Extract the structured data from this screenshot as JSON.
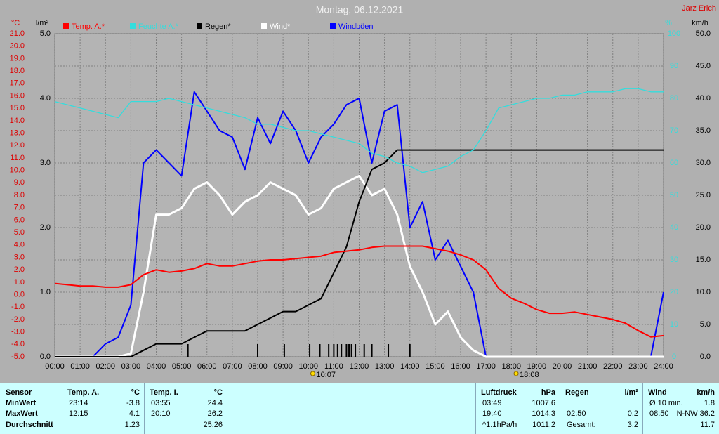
{
  "chart_data": {
    "type": "line",
    "title": "Montag, 06.12.2021",
    "author": "Jarz Erich",
    "axis_labels": {
      "y": "°C",
      "y2": "l/m²",
      "y3": "%",
      "y4": "km/h"
    },
    "x": [
      0,
      0.5,
      1,
      1.5,
      2,
      2.5,
      3,
      3.5,
      4,
      4.5,
      5,
      5.5,
      6,
      6.5,
      7,
      7.5,
      8,
      8.5,
      9,
      9.5,
      10,
      10.5,
      11,
      11.5,
      12,
      12.5,
      13,
      13.5,
      14,
      14.5,
      15,
      15.5,
      16,
      16.5,
      17,
      17.5,
      18,
      18.5,
      19,
      19.5,
      20,
      20.5,
      21,
      21.5,
      22,
      22.5,
      23,
      23.5,
      24
    ],
    "xlim": [
      0,
      24
    ],
    "xticks": [
      {
        "value": 0,
        "label": "00:00"
      },
      {
        "value": 1,
        "label": "01:00"
      },
      {
        "value": 2,
        "label": "02:00"
      },
      {
        "value": 3,
        "label": "03:00"
      },
      {
        "value": 4,
        "label": "04:00"
      },
      {
        "value": 5,
        "label": "05:00"
      },
      {
        "value": 6,
        "label": "06:00"
      },
      {
        "value": 7,
        "label": "07:00"
      },
      {
        "value": 8,
        "label": "08:00"
      },
      {
        "value": 9,
        "label": "09:00"
      },
      {
        "value": 10,
        "label": "10:00"
      },
      {
        "value": 11,
        "label": "11:00"
      },
      {
        "value": 12,
        "label": "12:00"
      },
      {
        "value": 13,
        "label": "13:00"
      },
      {
        "value": 14,
        "label": "14:00"
      },
      {
        "value": 15,
        "label": "15:00"
      },
      {
        "value": 16,
        "label": "16:00"
      },
      {
        "value": 17,
        "label": "17:00"
      },
      {
        "value": 18,
        "label": "18:00"
      },
      {
        "value": 19,
        "label": "19:00"
      },
      {
        "value": 20,
        "label": "20:00"
      },
      {
        "value": 21,
        "label": "21:00"
      },
      {
        "value": 22,
        "label": "22:00"
      },
      {
        "value": 23,
        "label": "23:00"
      },
      {
        "value": 24,
        "label": "24:00"
      }
    ],
    "ylim": [
      -5,
      21
    ],
    "yticks": [
      {
        "value": -5,
        "label": "-5.0"
      },
      {
        "value": -4,
        "label": "-4.0"
      },
      {
        "value": -3,
        "label": "-3.0"
      },
      {
        "value": -2,
        "label": "-2.0"
      },
      {
        "value": -1,
        "label": "-1.0"
      },
      {
        "value": 0,
        "label": "0.0"
      },
      {
        "value": 1,
        "label": "1.0"
      },
      {
        "value": 2,
        "label": "2.0"
      },
      {
        "value": 3,
        "label": "3.0"
      },
      {
        "value": 4,
        "label": "4.0"
      },
      {
        "value": 5,
        "label": "5.0"
      },
      {
        "value": 6,
        "label": "6.0"
      },
      {
        "value": 7,
        "label": "7.0"
      },
      {
        "value": 8,
        "label": "8.0"
      },
      {
        "value": 9,
        "label": "9.0"
      },
      {
        "value": 10,
        "label": "10.0"
      },
      {
        "value": 11,
        "label": "11.0"
      },
      {
        "value": 12,
        "label": "12.0"
      },
      {
        "value": 13,
        "label": "13.0"
      },
      {
        "value": 14,
        "label": "14.0"
      },
      {
        "value": 15,
        "label": "15.0"
      },
      {
        "value": 16,
        "label": "16.0"
      },
      {
        "value": 17,
        "label": "17.0"
      },
      {
        "value": 18,
        "label": "18.0"
      },
      {
        "value": 19,
        "label": "19.0"
      },
      {
        "value": 20,
        "label": "20.0"
      },
      {
        "value": 21,
        "label": "21.0"
      }
    ],
    "y2lim": [
      0,
      5
    ],
    "y2ticks": [
      {
        "value": 0,
        "label": "0.0"
      },
      {
        "value": 1,
        "label": "1.0"
      },
      {
        "value": 2,
        "label": "2.0"
      },
      {
        "value": 3,
        "label": "3.0"
      },
      {
        "value": 4,
        "label": "4.0"
      },
      {
        "value": 5,
        "label": "5.0"
      }
    ],
    "y3lim": [
      0,
      100
    ],
    "y3ticks": [
      0,
      10,
      20,
      30,
      40,
      50,
      60,
      70,
      80,
      90,
      100
    ],
    "y4lim": [
      0,
      50
    ],
    "y4ticks": [
      {
        "value": 0,
        "label": "0.0"
      },
      {
        "value": 5,
        "label": "5.0"
      },
      {
        "value": 10,
        "label": "10.0"
      },
      {
        "value": 15,
        "label": "15.0"
      },
      {
        "value": 20,
        "label": "20.0"
      },
      {
        "value": 25,
        "label": "25.0"
      },
      {
        "value": 30,
        "label": "30.0"
      },
      {
        "value": 35,
        "label": "35.0"
      },
      {
        "value": 40,
        "label": "40.0"
      },
      {
        "value": 45,
        "label": "45.0"
      },
      {
        "value": 50,
        "label": "50.0"
      }
    ],
    "grid": true,
    "series": [
      {
        "name": "Temp. A.*",
        "color": "#ff0000",
        "axis": "y",
        "width": 2,
        "values": [
          0.9,
          0.8,
          0.7,
          0.7,
          0.6,
          0.6,
          0.8,
          1.6,
          2.0,
          1.8,
          1.9,
          2.1,
          2.5,
          2.3,
          2.3,
          2.5,
          2.7,
          2.8,
          2.8,
          2.9,
          3.0,
          3.1,
          3.4,
          3.5,
          3.6,
          3.8,
          3.9,
          3.9,
          3.9,
          3.9,
          3.7,
          3.5,
          3.2,
          2.8,
          2.0,
          0.5,
          -0.3,
          -0.7,
          -1.2,
          -1.5,
          -1.5,
          -1.4,
          -1.6,
          -1.8,
          -2.0,
          -2.3,
          -2.9,
          -3.4,
          -3.3
        ]
      },
      {
        "name": "Feuchte A.*",
        "color": "#33dddd",
        "axis": "y3",
        "width": 1.3,
        "values": [
          79,
          78,
          77,
          76,
          75,
          74,
          79,
          79,
          79,
          80,
          79,
          78,
          77,
          76,
          75,
          74,
          72,
          72,
          71,
          70,
          70,
          69,
          68,
          67,
          66,
          63,
          62,
          60,
          59,
          57,
          58,
          59,
          62,
          64,
          70,
          77,
          78,
          79,
          80,
          80,
          81,
          81,
          82,
          82,
          82,
          83,
          83,
          82,
          82
        ]
      },
      {
        "name": "Regen*",
        "color": "#000000",
        "axis": "y2",
        "width": 2,
        "values": [
          0,
          0,
          0,
          0,
          0,
          0,
          0,
          0.1,
          0.2,
          0.2,
          0.2,
          0.3,
          0.4,
          0.4,
          0.4,
          0.4,
          0.5,
          0.6,
          0.7,
          0.7,
          0.8,
          0.9,
          1.3,
          1.7,
          2.4,
          2.9,
          3.0,
          3.2,
          3.2,
          3.2,
          3.2,
          3.2,
          3.2,
          3.2,
          3.2,
          3.2,
          3.2,
          3.2,
          3.2,
          3.2,
          3.2,
          3.2,
          3.2,
          3.2,
          3.2,
          3.2,
          3.2,
          3.2,
          3.2
        ]
      },
      {
        "name": "Wind*",
        "color": "#ffffff",
        "axis": "y4",
        "width": 3,
        "values": [
          0,
          0,
          0,
          0,
          0,
          0,
          0.5,
          10,
          22,
          22,
          23,
          26,
          27,
          25,
          22,
          24,
          25,
          27,
          26,
          25,
          22,
          23,
          26,
          27,
          28,
          25,
          26,
          22,
          14,
          10,
          5,
          7,
          3,
          1,
          0,
          0,
          0,
          0,
          0,
          0,
          0,
          0,
          0,
          0,
          0,
          0,
          0,
          0,
          0
        ]
      },
      {
        "name": "Windböen",
        "color": "#0000ff",
        "axis": "y4",
        "width": 2,
        "values": [
          0,
          0,
          0,
          0,
          2,
          3,
          8,
          30,
          32,
          30,
          28,
          41,
          38,
          35,
          34,
          29,
          37,
          33,
          38,
          35,
          30,
          34,
          36,
          39,
          40,
          30,
          38,
          39,
          20,
          24,
          15,
          18,
          14,
          10,
          0,
          0,
          0,
          0,
          0,
          0,
          0,
          0,
          0,
          0,
          0,
          0,
          0,
          0,
          10
        ]
      }
    ],
    "rain_ticks": [
      5.25,
      8.0,
      9.05,
      10.05,
      10.45,
      10.8,
      11.0,
      11.15,
      11.3,
      11.5,
      11.6,
      11.7,
      11.85,
      12.2,
      12.5,
      13.15,
      14.0
    ],
    "annotations": [
      {
        "value": 10.117,
        "label": "10:07"
      },
      {
        "value": 18.133,
        "label": "18:08"
      }
    ]
  },
  "table": {
    "row_labels": [
      "Sensor",
      "MinWert",
      "MaxWert",
      "Durchschnitt"
    ],
    "sections": [
      {
        "title": "Temp. A.",
        "unit": "°C",
        "rows": [
          [
            "23:14",
            "-3.8"
          ],
          [
            "12:15",
            "4.1"
          ],
          [
            null,
            "1.23"
          ]
        ]
      },
      {
        "title": "Temp. I.",
        "unit": "°C",
        "rows": [
          [
            "03:55",
            "24.4"
          ],
          [
            "20:10",
            "26.2"
          ],
          [
            null,
            "25.26"
          ]
        ]
      },
      {
        "title": "Luftdruck",
        "unit": "hPa",
        "rows": [
          [
            "03:49",
            "1007.6"
          ],
          [
            "19:40",
            "1014.3"
          ],
          [
            "^1.1hPa/h",
            "1011.2"
          ]
        ]
      },
      {
        "title": "Regen",
        "unit": "l/m²",
        "rows": [
          [
            null,
            null
          ],
          [
            "02:50",
            "0.2"
          ],
          [
            "Gesamt:",
            "3.2"
          ]
        ]
      },
      {
        "title": "Wind",
        "unit": "km/h",
        "rows": [
          [
            "Ø 10 min.",
            "1.8"
          ],
          [
            "08:50",
            "N-NW 36.2"
          ],
          [
            null,
            "11.7"
          ]
        ]
      }
    ]
  }
}
